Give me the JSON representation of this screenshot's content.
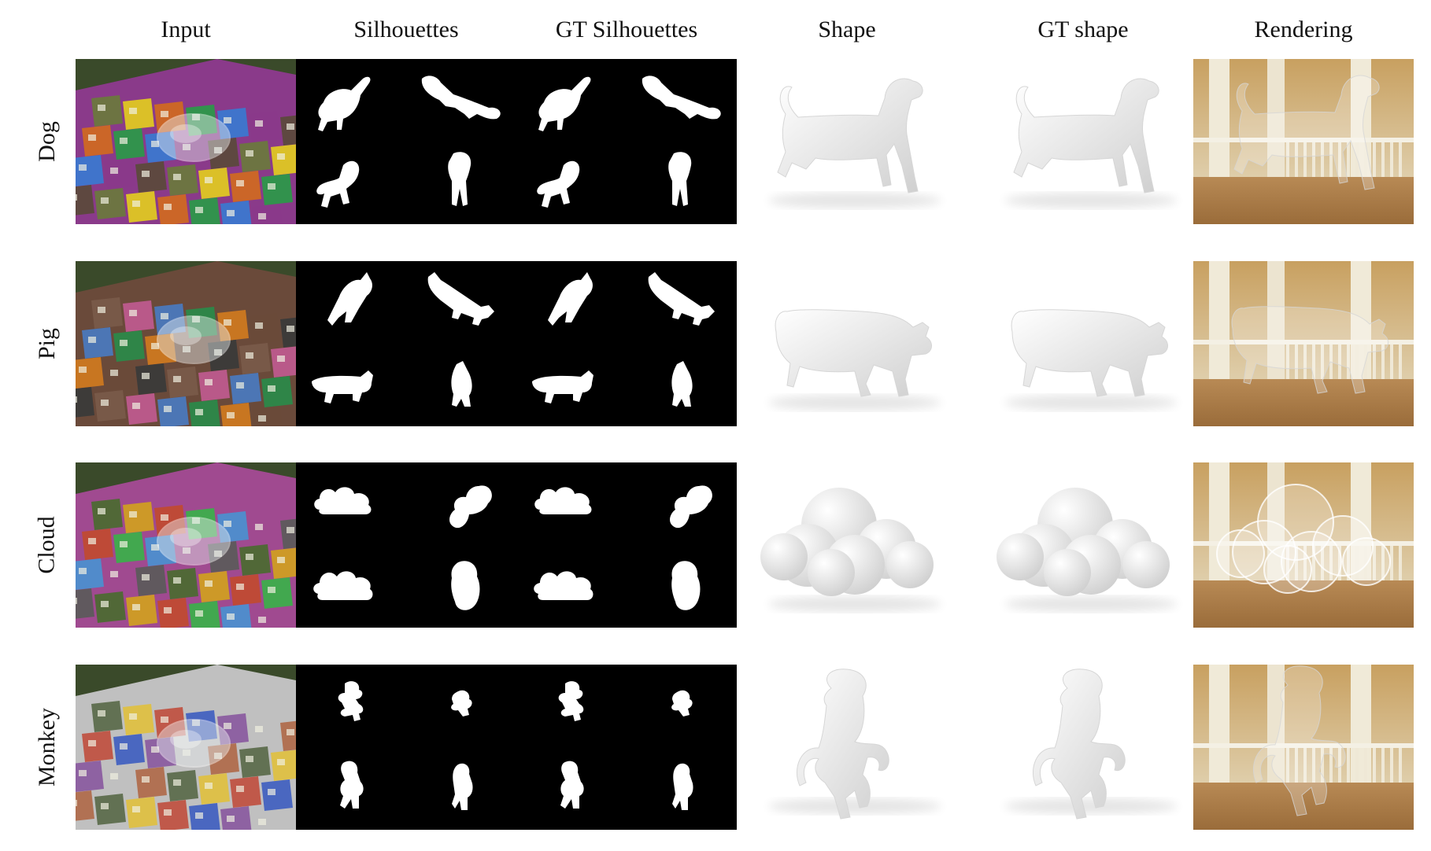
{
  "columns": [
    "Input",
    "Silhouettes",
    "GT Silhouettes",
    "Shape",
    "GT shape",
    "Rendering"
  ],
  "rows": [
    "Dog",
    "Pig",
    "Cloud",
    "Monkey"
  ],
  "colors": {
    "background": "#ffffff",
    "silhouette_bg": "#000000",
    "silhouette_fg": "#ffffff",
    "shape_fill": "#eeeeee",
    "wood": "#b88a55",
    "text": "#111111"
  }
}
